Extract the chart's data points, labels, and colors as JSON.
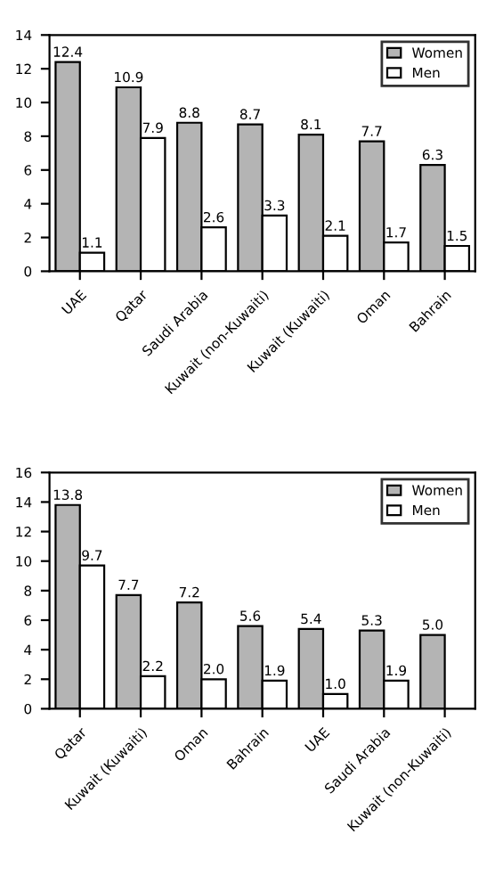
{
  "chart_data": [
    {
      "type": "bar",
      "categories": [
        "UAE",
        "Qatar",
        "Saudi Arabia",
        "Kuwait (non-Kuwaiti)",
        "Kuwait (Kuwaiti)",
        "Oman",
        "Bahrain"
      ],
      "series": [
        {
          "name": "Women",
          "color": "#b4b4b4",
          "values": [
            12.4,
            10.9,
            8.8,
            8.7,
            8.1,
            7.7,
            6.3
          ]
        },
        {
          "name": "Men",
          "color": "#ffffff",
          "values": [
            1.1,
            7.9,
            2.6,
            3.3,
            2.1,
            1.7,
            1.5
          ]
        }
      ],
      "ylim": [
        0,
        14
      ],
      "yticks": [
        0,
        2,
        4,
        6,
        8,
        10,
        12,
        14
      ],
      "data_labels": true,
      "legend": "top right",
      "grid": false
    },
    {
      "type": "bar",
      "categories": [
        "Qatar",
        "Kuwait (Kuwaiti)",
        "Oman",
        "Bahrain",
        "UAE",
        "Saudi Arabia",
        "Kuwait (non-Kuwaiti)"
      ],
      "series": [
        {
          "name": "Women",
          "color": "#b4b4b4",
          "values": [
            13.8,
            7.7,
            7.2,
            5.6,
            5.4,
            5.3,
            5.0
          ],
          "value_labels": [
            "13.8",
            "7.7",
            "7.2",
            "5.6",
            "5.4",
            "5.3",
            "5.0"
          ]
        },
        {
          "name": "Men",
          "color": "#ffffff",
          "values": [
            9.7,
            2.2,
            2.0,
            1.9,
            1.0,
            1.9,
            null
          ],
          "value_labels": [
            "9.7",
            "2.2",
            "2.0",
            "1.9",
            "1.0",
            "1.9",
            null
          ]
        }
      ],
      "ylim": [
        0,
        16
      ],
      "yticks": [
        0,
        2,
        4,
        6,
        8,
        10,
        12,
        14,
        16
      ],
      "legend": "top right",
      "grid": false
    }
  ]
}
